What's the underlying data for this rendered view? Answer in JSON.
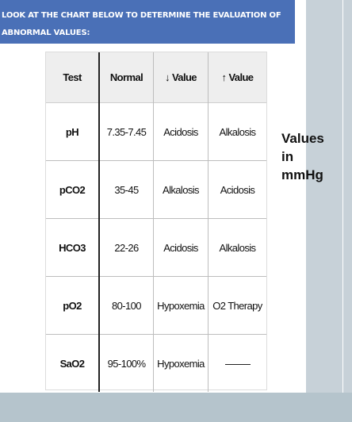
{
  "banner": {
    "text": "LOOK AT THE CHART BELOW TO DETERMINE THE EVALUATION OF ABNORMAL VALUES:"
  },
  "table": {
    "headers": [
      "Test",
      "Normal",
      "↓ Value",
      "↑ Value"
    ],
    "rows": [
      {
        "test": "pH",
        "normal": "7.35-7.45",
        "low": "Acidosis",
        "high": "Alkalosis"
      },
      {
        "test": "pCO2",
        "normal": "35-45",
        "low": "Alkalosis",
        "high": "Acidosis"
      },
      {
        "test": "HCO3",
        "normal": "22-26",
        "low": "Acidosis",
        "high": "Alkalosis"
      },
      {
        "test": "pO2",
        "normal": "80-100",
        "low": "Hypoxemia",
        "high": "O2 Therapy"
      },
      {
        "test": "SaO2",
        "normal": "95-100%",
        "low": "Hypoxemia",
        "high": "—"
      }
    ]
  },
  "side_note": {
    "line1": "Values",
    "line2": "in",
    "line3": "mmHg"
  },
  "colors": {
    "banner": "#4a70b7",
    "right_band": "#c7d1d8",
    "bottom_band": "#b5c4cc"
  }
}
